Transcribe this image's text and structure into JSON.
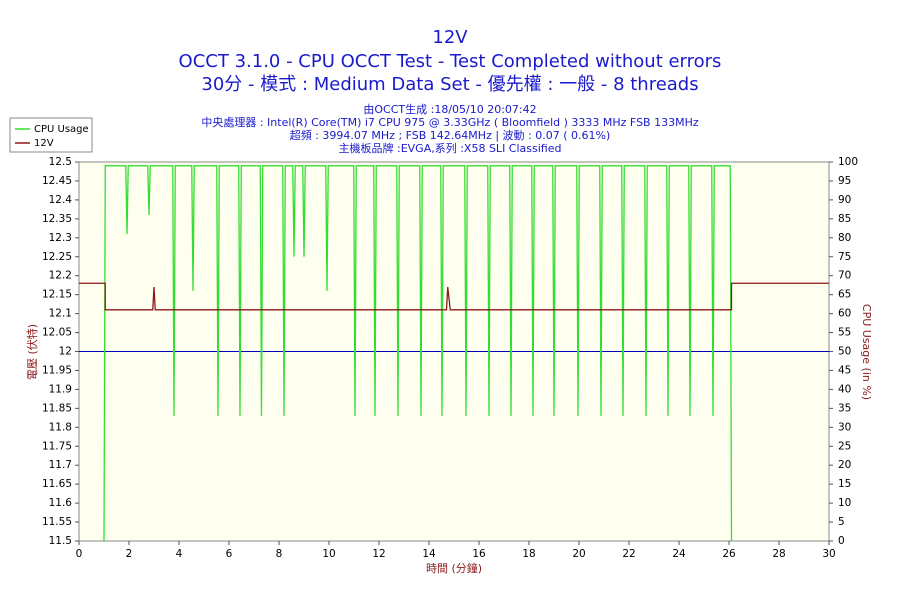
{
  "chart_data": {
    "type": "line",
    "title": "12V",
    "subtitle": [
      "OCCT 3.1.0 - CPU OCCT Test - Test Completed without errors",
      "30分 - 模式 : Medium Data Set - 優先權 : 一般 - 8 threads"
    ],
    "info": [
      "由OCCT生成 :18/05/10 20:07:42",
      "中央處理器 : Intel(R) Core(TM) i7 CPU 975 @ 3.33GHz ( Bloomfield ) 3333 MHz FSB 133MHz",
      "超頻 : 3994.07 MHz ; FSB 142.64MHz | 波動 : 0.07 ( 0.61%)",
      "主機板品牌 :EVGA,系列 :X58 SLI Classified"
    ],
    "x_label": "時間 (分鐘)",
    "y_label": "電壓 (伏特)",
    "y2_label": "CPU Usage (in %)",
    "xlim": [
      0,
      30
    ],
    "xticks": [
      0,
      2,
      4,
      6,
      8,
      10,
      12,
      14,
      16,
      18,
      20,
      22,
      24,
      26,
      28,
      30
    ],
    "ylim": [
      11.5,
      12.5
    ],
    "yticks": [
      11.5,
      11.55,
      11.6,
      11.65,
      11.7,
      11.75,
      11.8,
      11.85,
      11.9,
      11.95,
      12,
      12.05,
      12.1,
      12.15,
      12.2,
      12.25,
      12.3,
      12.35,
      12.4,
      12.45,
      12.5
    ],
    "y2lim": [
      0,
      100
    ],
    "y2ticks": [
      0,
      5,
      10,
      15,
      20,
      25,
      30,
      35,
      40,
      45,
      50,
      55,
      60,
      65,
      70,
      75,
      80,
      85,
      90,
      95,
      100
    ],
    "reference_line": {
      "value": 12,
      "color": "#0000c0"
    },
    "legend": "top-left",
    "series": [
      {
        "name": "CPU Usage",
        "color": "#33dd33",
        "axis": "y2",
        "x": [
          1.0,
          1.05,
          1.87,
          1.92,
          1.97,
          2.75,
          2.8,
          2.85,
          3.75,
          3.8,
          3.85,
          4.51,
          4.56,
          4.61,
          5.51,
          5.56,
          5.61,
          6.39,
          6.44,
          6.49,
          7.25,
          7.3,
          7.35,
          8.15,
          8.2,
          8.25,
          8.55,
          8.6,
          8.65,
          8.95,
          9.0,
          9.05,
          9.87,
          9.92,
          9.97,
          10.99,
          11.04,
          11.09,
          11.79,
          11.84,
          11.89,
          12.71,
          12.76,
          12.81,
          13.63,
          13.68,
          13.73,
          14.47,
          14.52,
          14.57,
          15.43,
          15.48,
          15.53,
          16.35,
          16.4,
          16.45,
          17.23,
          17.28,
          17.33,
          18.11,
          18.16,
          18.21,
          18.95,
          19.0,
          19.05,
          19.91,
          19.96,
          20.01,
          20.83,
          20.88,
          20.93,
          21.71,
          21.76,
          21.81,
          22.63,
          22.68,
          22.73,
          23.51,
          23.56,
          23.61,
          24.39,
          24.44,
          24.49,
          25.31,
          25.36,
          25.41,
          26.05,
          26.1
        ],
        "values": [
          0,
          99,
          99,
          81,
          99,
          99,
          86,
          99,
          99,
          33,
          99,
          99,
          66,
          99,
          99,
          33,
          99,
          99,
          33,
          99,
          99,
          33,
          99,
          99,
          33,
          99,
          99,
          75,
          99,
          99,
          75,
          99,
          99,
          66,
          99,
          99,
          33,
          99,
          99,
          33,
          99,
          99,
          33,
          99,
          99,
          33,
          99,
          99,
          33,
          99,
          99,
          33,
          99,
          99,
          33,
          99,
          99,
          33,
          99,
          99,
          33,
          99,
          99,
          33,
          99,
          99,
          33,
          99,
          99,
          33,
          99,
          99,
          33,
          99,
          99,
          33,
          99,
          99,
          33,
          99,
          99,
          33,
          99,
          99,
          33,
          99,
          99,
          0
        ]
      },
      {
        "name": "12V",
        "color": "#8b1a1a",
        "axis": "y",
        "x": [
          0,
          1.05,
          1.05,
          2.95,
          3.0,
          3.05,
          14.7,
          14.75,
          14.85,
          26.1,
          26.1,
          30
        ],
        "values": [
          12.18,
          12.18,
          12.11,
          12.11,
          12.17,
          12.11,
          12.11,
          12.17,
          12.11,
          12.11,
          12.18,
          12.18
        ]
      }
    ]
  }
}
